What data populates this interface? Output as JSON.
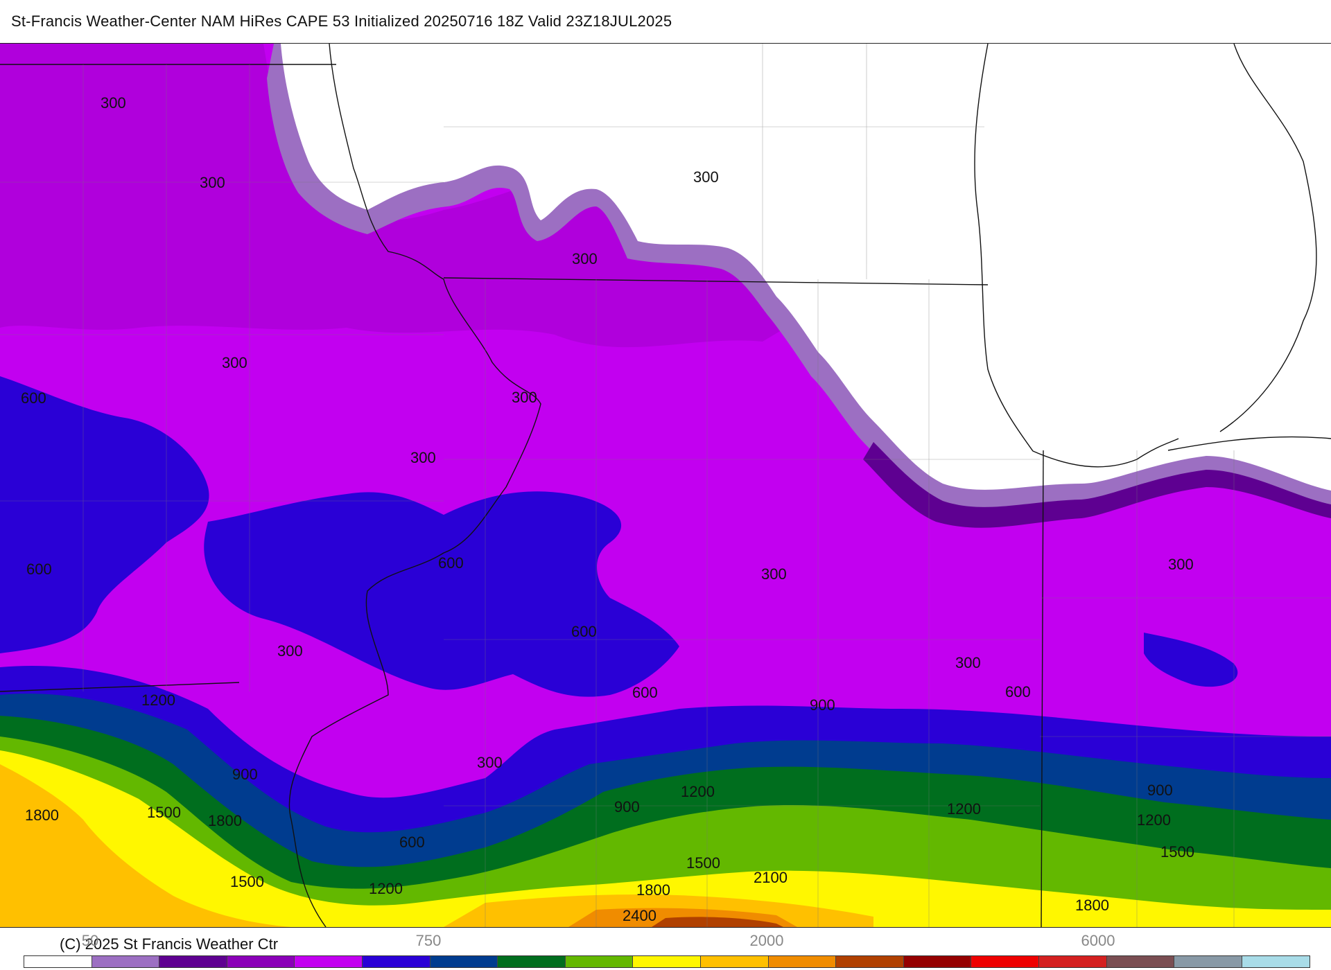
{
  "title": "St-Francis Weather-Center NAM HiRes CAPE  53 Initialized 20250716 18Z Valid 23Z18JUL2025",
  "copyright": "(C) 2025 St Francis Weather Ctr",
  "colorbar": {
    "colors": [
      "#ffffff",
      "#9c6fc2",
      "#5e0091",
      "#8a00b8",
      "#c200f0",
      "#2a00d6",
      "#003c8f",
      "#006e1e",
      "#63b800",
      "#fff700",
      "#ffc000",
      "#f08c00",
      "#b04000",
      "#950000",
      "#ee0000",
      "#d42020",
      "#7a4e52",
      "#8899a6",
      "#a8dce8"
    ],
    "tick_labels": [
      "50",
      "750",
      "2000",
      "6000"
    ]
  },
  "contour_labels": [
    "300",
    "300",
    "300",
    "300",
    "300",
    "300",
    "300",
    "300",
    "300",
    "300",
    "300",
    "300",
    "600",
    "600",
    "600",
    "600",
    "600",
    "600",
    "600",
    "900",
    "900",
    "900",
    "900",
    "1200",
    "1200",
    "1200",
    "1200",
    "1200",
    "1500",
    "1500",
    "1500",
    "1500",
    "1800",
    "1800",
    "1800",
    "1800",
    "2100",
    "2400"
  ]
}
